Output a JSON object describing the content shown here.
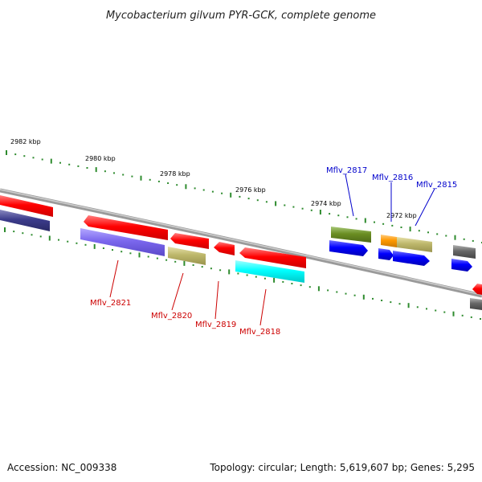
{
  "title": "Mycobacterium gilvum PYR-GCK, complete genome",
  "footer": {
    "accession": "Accession: NC_009338",
    "summary": "Topology: circular; Length: 5,619,607 bp; Genes: 5,295"
  },
  "kbp_labels": [
    "2982 kbp",
    "2980 kbp",
    "2978 kbp",
    "2976 kbp",
    "2974 kbp",
    "2972 kbp"
  ],
  "gene_labels": {
    "forward": [
      "Mflv_2817",
      "Mflv_2816",
      "Mflv_2815"
    ],
    "reverse": [
      "Mflv_2821",
      "Mflv_2820",
      "Mflv_2819",
      "Mflv_2818"
    ]
  },
  "colors": {
    "forward_label": "#0000cc",
    "reverse_label": "#cc0000",
    "tick": "#2e8b2e",
    "backbone": "#8c8c8c",
    "red": "#ff0000",
    "navy": "#3c3c8c",
    "violet": "#7b68ee",
    "khaki": "#bdb76b",
    "cyan": "#00ffff",
    "olive": "#6b8e23",
    "blue": "#0000ff",
    "orange": "#ff9900",
    "gray": "#666666"
  }
}
